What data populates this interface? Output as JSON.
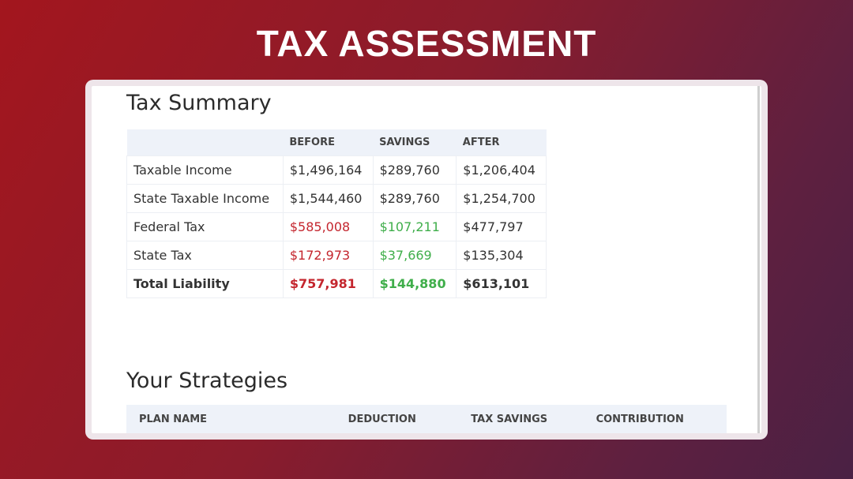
{
  "header": {
    "title": "TAX ASSESSMENT"
  },
  "summary": {
    "title": "Tax Summary",
    "columns": [
      "BEFORE",
      "SAVINGS",
      "AFTER"
    ],
    "rows": [
      {
        "label": "Taxable Income",
        "cells": [
          "$1,496,164",
          "$289,760",
          "$1,206,404"
        ]
      },
      {
        "label": "State Taxable Income",
        "cells": [
          "$1,544,460",
          "$289,760",
          "$1,254,700"
        ]
      },
      {
        "label": "Federal Tax",
        "cells": [
          "$585,008",
          "$107,211",
          "$477,797"
        ]
      },
      {
        "label": "State Tax",
        "cells": [
          "$172,973",
          "$37,669",
          "$135,304"
        ]
      },
      {
        "label": "Total Liability",
        "cells": [
          "$757,981",
          "$144,880",
          "$613,101"
        ]
      }
    ]
  },
  "strategies": {
    "title": "Your Strategies",
    "columns": [
      "PLAN NAME",
      "DEDUCTION",
      "TAX SAVINGS",
      "CONTRIBUTION"
    ]
  }
}
